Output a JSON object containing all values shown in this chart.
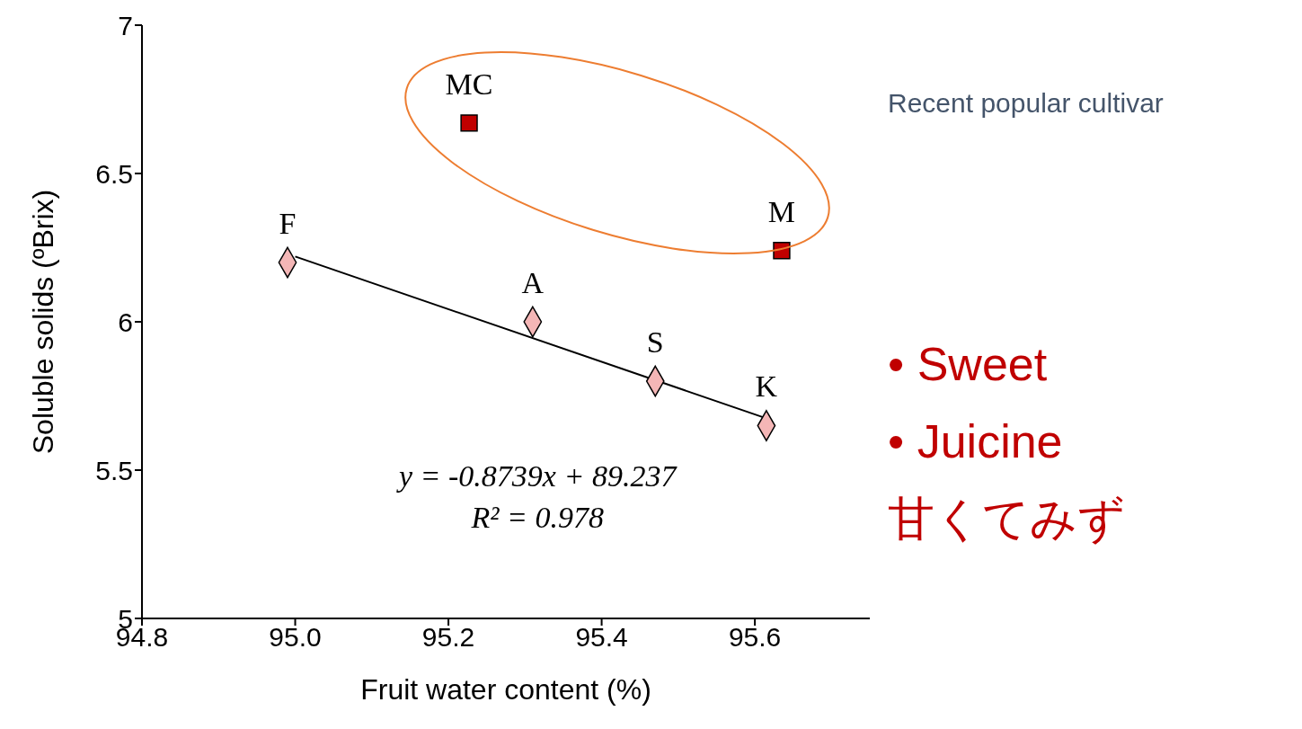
{
  "chart_data": {
    "type": "scatter",
    "xlabel": "Fruit water content (%)",
    "ylabel": "Soluble solids (ºBrix)",
    "xlim": [
      94.8,
      95.75
    ],
    "xticks": [
      {
        "value": 94.8,
        "label": "94.8"
      },
      {
        "value": 95,
        "label": "95.0"
      },
      {
        "value": 95.2,
        "label": "95.2"
      },
      {
        "value": 95.4,
        "label": "95.4"
      },
      {
        "value": 95.6,
        "label": "95.6"
      }
    ],
    "ylim": [
      5,
      7
    ],
    "yticks": [
      5,
      5.5,
      6,
      6.5,
      7
    ],
    "series": [
      {
        "marker": "diamond",
        "color": "#f4b6b6",
        "x": [
          94.99,
          95.31,
          95.47,
          95.615
        ],
        "values": [
          6.2,
          6.0,
          5.8,
          5.65
        ],
        "value_labels": [
          "F",
          "A",
          "S",
          "K"
        ]
      },
      {
        "marker": "square",
        "color": "#c00000",
        "x": [
          95.227,
          95.635
        ],
        "values": [
          6.67,
          6.24
        ],
        "value_labels": [
          "MC",
          "M"
        ]
      },
      {
        "type": "line",
        "marker": "none",
        "color": "#000000",
        "x": [
          95.0,
          95.62
        ],
        "values": [
          6.22,
          5.67
        ]
      }
    ],
    "annotations": [
      "y = -0.8739x + 89.237",
      "R² = 0.978",
      "Recent popular cultivar",
      "• Sweet",
      "• Juicine",
      "甘くてみず"
    ]
  }
}
